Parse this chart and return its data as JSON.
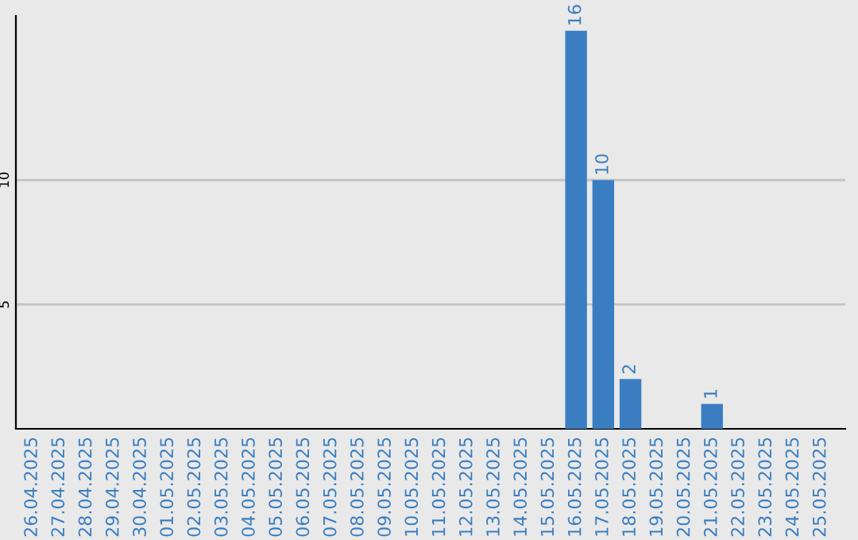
{
  "chart_data": {
    "type": "bar",
    "categories": [
      "26.04.2025",
      "27.04.2025",
      "28.04.2025",
      "29.04.2025",
      "30.04.2025",
      "01.05.2025",
      "02.05.2025",
      "03.05.2025",
      "04.05.2025",
      "05.05.2025",
      "06.05.2025",
      "07.05.2025",
      "08.05.2025",
      "09.05.2025",
      "10.05.2025",
      "11.05.2025",
      "12.05.2025",
      "13.05.2025",
      "14.05.2025",
      "15.05.2025",
      "16.05.2025",
      "17.05.2025",
      "18.05.2025",
      "19.05.2025",
      "20.05.2025",
      "21.05.2025",
      "22.05.2025",
      "23.05.2025",
      "24.05.2025",
      "25.05.2025"
    ],
    "values": [
      0,
      0,
      0,
      0,
      0,
      0,
      0,
      0,
      0,
      0,
      0,
      0,
      0,
      0,
      0,
      0,
      0,
      0,
      0,
      0,
      16,
      10,
      2,
      0,
      0,
      1,
      0,
      0,
      0,
      0
    ],
    "value_labels": [
      null,
      null,
      null,
      null,
      null,
      null,
      null,
      null,
      null,
      null,
      null,
      null,
      null,
      null,
      null,
      null,
      null,
      null,
      null,
      null,
      "16",
      "10",
      "2",
      null,
      null,
      "1",
      null,
      null,
      null,
      null
    ],
    "color": "#3a7ec1",
    "ylim": [
      0,
      16.6
    ],
    "yticks": [
      5,
      10
    ],
    "grid": "y",
    "legend": false
  }
}
